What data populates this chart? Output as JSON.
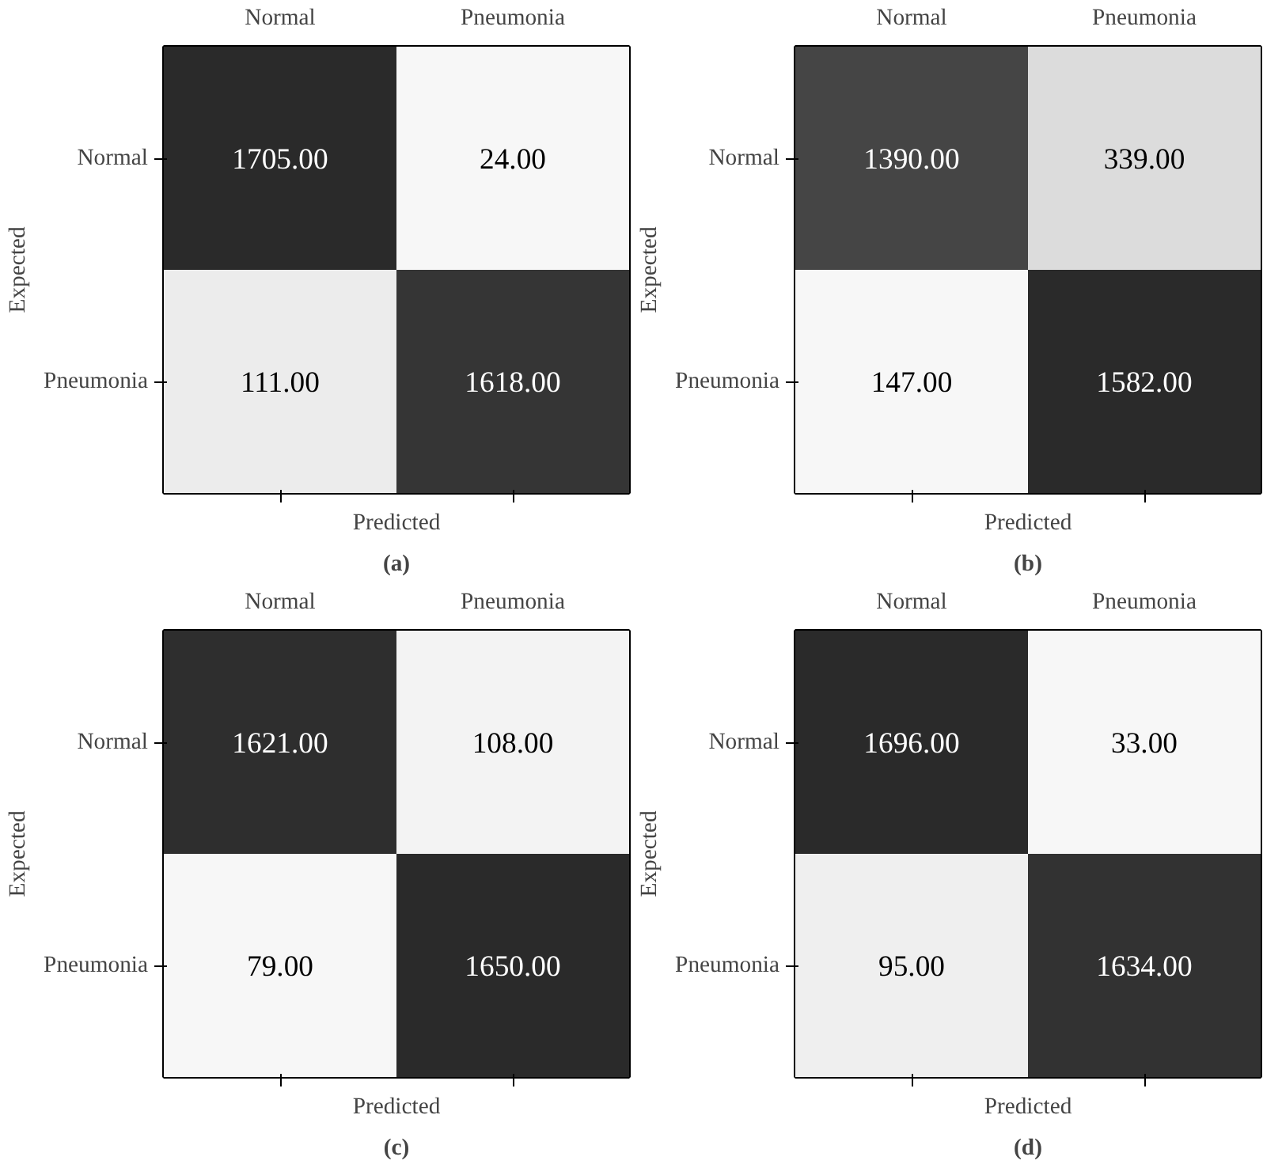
{
  "chart_data": [
    {
      "type": "heatmap",
      "categories": [
        "Normal",
        "Pneumonia"
      ],
      "y_categories": [
        "Normal",
        "Pneumonia"
      ],
      "cells": [
        [
          1705.0,
          24.0
        ],
        [
          111.0,
          1618.0
        ]
      ],
      "cell_labels": [
        [
          "1705.00",
          "24.00"
        ],
        [
          "111.00",
          "1618.00"
        ]
      ],
      "xlabel": "Predicted",
      "ylabel": "Expected",
      "annotations": [
        "(a)"
      ]
    },
    {
      "type": "heatmap",
      "categories": [
        "Normal",
        "Pneumonia"
      ],
      "y_categories": [
        "Normal",
        "Pneumonia"
      ],
      "cells": [
        [
          1390.0,
          339.0
        ],
        [
          147.0,
          1582.0
        ]
      ],
      "cell_labels": [
        [
          "1390.00",
          "339.00"
        ],
        [
          "147.00",
          "1582.00"
        ]
      ],
      "xlabel": "Predicted",
      "ylabel": "Expected",
      "annotations": [
        "(b)"
      ]
    },
    {
      "type": "heatmap",
      "categories": [
        "Normal",
        "Pneumonia"
      ],
      "y_categories": [
        "Normal",
        "Pneumonia"
      ],
      "cells": [
        [
          1621.0,
          108.0
        ],
        [
          79.0,
          1650.0
        ]
      ],
      "cell_labels": [
        [
          "1621.00",
          "108.00"
        ],
        [
          "79.00",
          "1650.00"
        ]
      ],
      "xlabel": "Predicted",
      "ylabel": "Expected",
      "annotations": [
        "(c)"
      ]
    },
    {
      "type": "heatmap",
      "categories": [
        "Normal",
        "Pneumonia"
      ],
      "y_categories": [
        "Normal",
        "Pneumonia"
      ],
      "cells": [
        [
          1696.0,
          33.0
        ],
        [
          95.0,
          1634.0
        ]
      ],
      "cell_labels": [
        [
          "1696.00",
          "33.00"
        ],
        [
          "95.00",
          "1634.00"
        ]
      ],
      "xlabel": "Predicted",
      "ylabel": "Expected",
      "annotations": [
        "(d)"
      ]
    }
  ]
}
